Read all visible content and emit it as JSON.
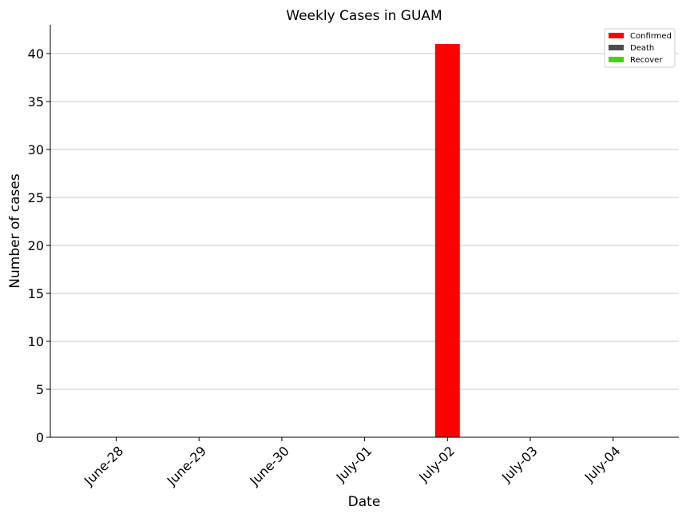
{
  "chart_data": {
    "type": "bar",
    "title": "Weekly Cases in GUAM",
    "xlabel": "Date",
    "ylabel": "Number of cases",
    "categories": [
      "June-28",
      "June-29",
      "June-30",
      "July-01",
      "July-02",
      "July-03",
      "July-04"
    ],
    "series": [
      {
        "name": "Confirmed",
        "color": "#ff0000",
        "values": [
          0,
          0,
          0,
          0,
          41,
          0,
          0
        ]
      },
      {
        "name": "Death",
        "color": "#4d4d4d",
        "values": [
          0,
          0,
          0,
          0,
          0,
          0,
          0
        ]
      },
      {
        "name": "Recover",
        "color": "#44d416",
        "values": [
          0,
          0,
          0,
          0,
          0,
          0,
          0
        ]
      }
    ],
    "ylim": [
      0,
      43
    ],
    "yticks": [
      0,
      5,
      10,
      15,
      20,
      25,
      30,
      35,
      40
    ],
    "grid": "horizontal",
    "legend_position": "top-right"
  }
}
